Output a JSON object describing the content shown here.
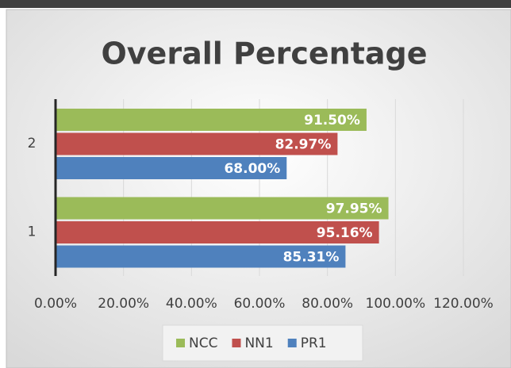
{
  "chart_data": {
    "type": "hbar",
    "title": "Overall Percentage",
    "categories": [
      "1",
      "2"
    ],
    "series": [
      {
        "name": "NCC",
        "color": "#9bbb59",
        "values": [
          97.95,
          91.5
        ],
        "value_labels": [
          "97.95%",
          "91.50%"
        ]
      },
      {
        "name": "NN1",
        "color": "#c0504d",
        "values": [
          95.16,
          82.97
        ],
        "value_labels": [
          "95.16%",
          "82.97%"
        ]
      },
      {
        "name": "PR1",
        "color": "#4f81bd",
        "values": [
          85.31,
          68.0
        ],
        "value_labels": [
          "85.31%",
          "68.00%"
        ]
      }
    ],
    "xlim": [
      0,
      120
    ],
    "xticks": [
      {
        "value": 0,
        "label": "0.00%"
      },
      {
        "value": 20,
        "label": "20.00%"
      },
      {
        "value": 40,
        "label": "40.00%"
      },
      {
        "value": 60,
        "label": "60.00%"
      },
      {
        "value": 80,
        "label": "80.00%"
      },
      {
        "value": 100,
        "label": "100.00%"
      },
      {
        "value": 120,
        "label": "120.00%"
      }
    ],
    "grid": true,
    "legend": "bottom"
  }
}
